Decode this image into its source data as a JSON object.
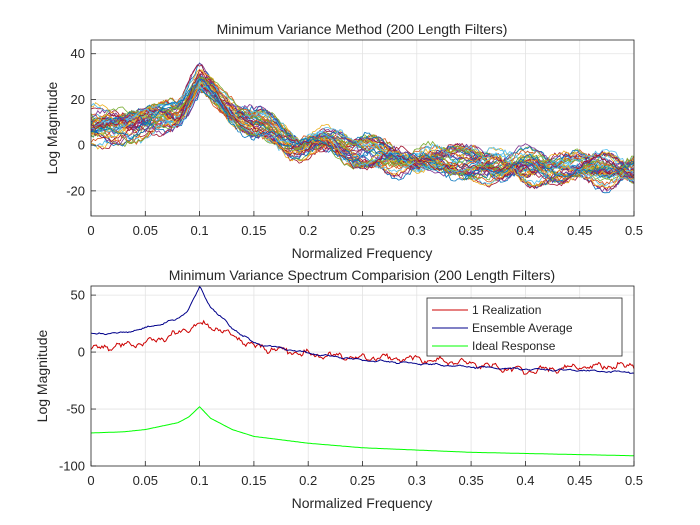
{
  "chart_data": [
    {
      "type": "line",
      "title": "Minimum Variance Method (200 Length Filters)",
      "xlabel": "Normalized Frequency",
      "ylabel": "Log Magnitude",
      "xlim": [
        0,
        0.5
      ],
      "ylim": [
        -31,
        46
      ],
      "xticks": [
        0,
        0.05,
        0.1,
        0.15,
        0.2,
        0.25,
        0.3,
        0.35,
        0.4,
        0.45,
        0.5
      ],
      "xtick_labels": [
        "0",
        "0.05",
        "0.1",
        "0.15",
        "0.2",
        "0.25",
        "0.3",
        "0.35",
        "0.4",
        "0.45",
        "0.5"
      ],
      "yticks": [
        -20,
        0,
        20,
        40
      ],
      "ytick_labels": [
        "-20",
        "0",
        "20",
        "40"
      ],
      "grid": true,
      "n_realizations": 50,
      "peak_frequency": 0.1,
      "envelope": {
        "x": [
          0,
          0.05,
          0.08,
          0.1,
          0.12,
          0.15,
          0.2,
          0.25,
          0.3,
          0.35,
          0.4,
          0.45,
          0.5
        ],
        "mean": [
          8,
          10,
          15,
          28,
          18,
          8,
          1,
          -3,
          -7,
          -8,
          -10,
          -10,
          -11
        ],
        "spread": 6
      },
      "series_colors": [
        "#0072BD",
        "#D95319",
        "#EDB120",
        "#7E2F8E",
        "#77AC30",
        "#4DBEEE",
        "#A2142F"
      ]
    },
    {
      "type": "line",
      "title": "Minimum Variance Spectrum Comparision (200 Length Filters)",
      "xlabel": "Normalized Frequency",
      "ylabel": "Log Magnitude",
      "xlim": [
        0,
        0.5
      ],
      "ylim": [
        -100,
        58
      ],
      "xticks": [
        0,
        0.05,
        0.1,
        0.15,
        0.2,
        0.25,
        0.3,
        0.35,
        0.4,
        0.45,
        0.5
      ],
      "xtick_labels": [
        "0",
        "0.05",
        "0.1",
        "0.15",
        "0.2",
        "0.25",
        "0.3",
        "0.35",
        "0.4",
        "0.45",
        "0.5"
      ],
      "yticks": [
        -100,
        -50,
        0,
        50
      ],
      "ytick_labels": [
        "-100",
        "-50",
        "0",
        "50"
      ],
      "grid": true,
      "legend_position": "top-right",
      "series": [
        {
          "name": "1 Realization",
          "color": "#cc0000",
          "x": [
            0,
            0.05,
            0.08,
            0.1,
            0.12,
            0.15,
            0.2,
            0.25,
            0.3,
            0.35,
            0.4,
            0.45,
            0.5
          ],
          "values": [
            3,
            8,
            16,
            25,
            19,
            5,
            -2,
            -5,
            -6,
            -10,
            -17,
            -13,
            -12
          ],
          "noise": 3.5
        },
        {
          "name": "Ensemble Average",
          "color": "#00008b",
          "x": [
            0,
            0.03,
            0.05,
            0.08,
            0.09,
            0.1,
            0.11,
            0.13,
            0.15,
            0.2,
            0.25,
            0.3,
            0.35,
            0.4,
            0.45,
            0.5
          ],
          "values": [
            16,
            17,
            21,
            29,
            38,
            57,
            40,
            21,
            8,
            -1,
            -7,
            -10,
            -13,
            -15,
            -16,
            -18
          ],
          "noise": 1.0
        },
        {
          "name": "Ideal Response",
          "color": "#00ff00",
          "x": [
            0,
            0.03,
            0.05,
            0.08,
            0.09,
            0.1,
            0.11,
            0.13,
            0.15,
            0.2,
            0.25,
            0.3,
            0.35,
            0.4,
            0.45,
            0.5
          ],
          "values": [
            -71,
            -70,
            -68,
            -62,
            -57,
            -48,
            -58,
            -68,
            -74,
            -80,
            -84,
            -86,
            -88,
            -89,
            -90,
            -91
          ],
          "noise": 0
        }
      ]
    }
  ]
}
